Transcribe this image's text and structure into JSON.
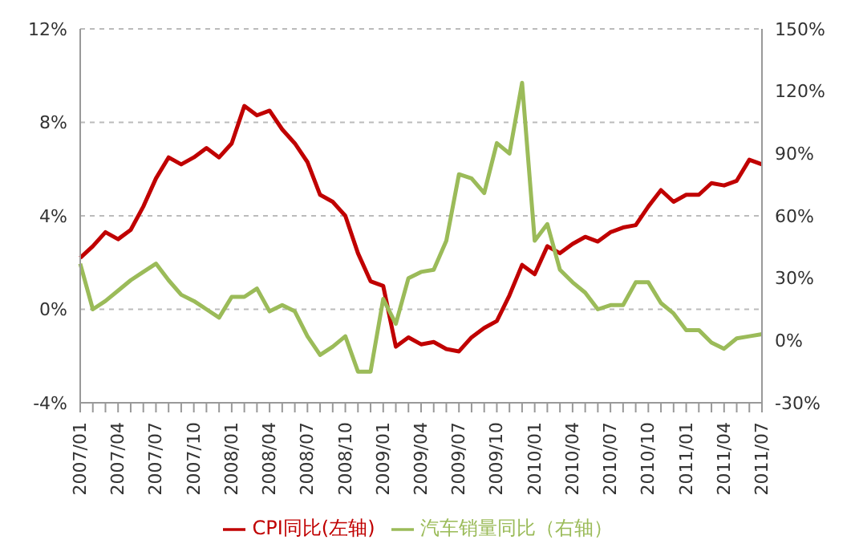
{
  "chart_data": {
    "type": "line",
    "categories": [
      "2007/01",
      null,
      null,
      "2007/04",
      null,
      null,
      "2007/07",
      null,
      null,
      "2007/10",
      null,
      null,
      "2008/01",
      null,
      null,
      "2008/04",
      null,
      null,
      "2008/07",
      null,
      null,
      "2008/10",
      null,
      null,
      "2009/01",
      null,
      null,
      "2009/04",
      null,
      null,
      "2009/07",
      null,
      null,
      "2009/10",
      null,
      null,
      "2010/01",
      null,
      null,
      "2010/04",
      null,
      null,
      "2010/07",
      null,
      null,
      "2010/10",
      null,
      null,
      "2011/01",
      null,
      null,
      "2011/04",
      null,
      null,
      "2011/07"
    ],
    "series": [
      {
        "name": "CPI同比(左轴)",
        "color": "#c00000",
        "values": [
          2.2,
          2.7,
          3.3,
          3.0,
          3.4,
          4.4,
          5.6,
          6.5,
          6.2,
          6.5,
          6.9,
          6.5,
          7.1,
          8.7,
          8.3,
          8.5,
          7.7,
          7.1,
          6.3,
          4.9,
          4.6,
          4.0,
          2.4,
          1.2,
          1.0,
          -1.6,
          -1.2,
          -1.5,
          -1.4,
          -1.7,
          -1.8,
          -1.2,
          -0.8,
          -0.5,
          0.6,
          1.9,
          1.5,
          2.7,
          2.4,
          2.8,
          3.1,
          2.9,
          3.3,
          3.5,
          3.6,
          4.4,
          5.1,
          4.6,
          4.9,
          4.9,
          5.4,
          5.3,
          5.5,
          6.4,
          6.2
        ]
      },
      {
        "name": "汽车销量同比（右轴）",
        "color": "#9bbb59",
        "axis": "y2",
        "values": [
          37,
          15,
          19,
          24,
          29,
          33,
          37,
          29,
          22,
          19,
          15,
          11,
          21,
          21,
          25,
          14,
          17,
          14,
          2,
          -7,
          -3,
          2,
          -15,
          -15,
          20,
          8,
          30,
          33,
          34,
          48,
          80,
          78,
          71,
          95,
          90,
          124,
          48,
          56,
          34,
          28,
          23,
          15,
          17,
          17,
          28,
          28,
          18,
          13,
          5,
          5,
          -1,
          -4,
          1,
          2,
          3
        ]
      }
    ],
    "ylim": [
      -4,
      12
    ],
    "yticks": [
      {
        "value": -4,
        "label": "-4%"
      },
      {
        "value": 0,
        "label": "0%"
      },
      {
        "value": 4,
        "label": "4%"
      },
      {
        "value": 8,
        "label": "8%"
      },
      {
        "value": 12,
        "label": "12%"
      }
    ],
    "y2lim": [
      -30,
      150
    ],
    "y2ticks": [
      {
        "value": -30,
        "label": "-30%"
      },
      {
        "value": 0,
        "label": "0%"
      },
      {
        "value": 30,
        "label": "30%"
      },
      {
        "value": 60,
        "label": "60%"
      },
      {
        "value": 90,
        "label": "90%"
      },
      {
        "value": 120,
        "label": "120%"
      },
      {
        "value": 150,
        "label": "150%"
      }
    ],
    "grid": "y",
    "legend": "bottom",
    "marker": "none",
    "line_style": "solid"
  }
}
